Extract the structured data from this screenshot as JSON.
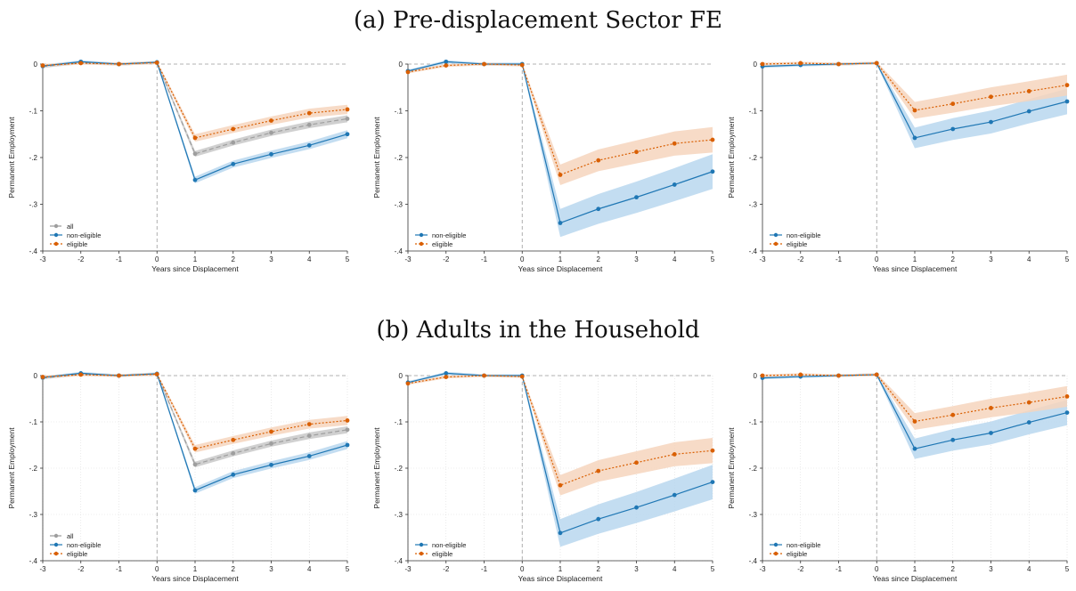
{
  "titles": {
    "a": "(a) Pre-displacement Sector FE",
    "b": "(b) Adults in the Household"
  },
  "colors": {
    "all": "#9e9e9e",
    "non_eligible": "#1f77b4",
    "eligible": "#d95f02",
    "all_band": "#c8c8c8",
    "non_eligible_band": "#b9d7ee",
    "eligible_band": "#f6d5bd"
  },
  "chart_data": [
    {
      "type": "line",
      "section": "a",
      "xlabel": "Years since Displacement",
      "ylabel": "Permanent Employment",
      "x": [
        -3,
        -2,
        -1,
        0,
        1,
        2,
        3,
        4,
        5
      ],
      "xlim": [
        -3,
        5
      ],
      "ylim": [
        -0.4,
        0
      ],
      "yticks": [
        0,
        -0.1,
        -0.2,
        -0.3,
        -0.4
      ],
      "yticklabels": [
        "0",
        "-.1",
        "-.2",
        "-.3",
        "-.4"
      ],
      "grid": false,
      "legend_position": "bottom-left",
      "series": [
        {
          "name": "all",
          "key": "all",
          "dash": "5,3",
          "values": [
            -0.005,
            0.003,
            0,
            0.003,
            -0.192,
            -0.168,
            -0.147,
            -0.13,
            -0.117
          ],
          "ci": 0.006
        },
        {
          "name": "non-eligible",
          "key": "non_eligible",
          "dash": "",
          "values": [
            -0.004,
            0.005,
            0,
            0.004,
            -0.248,
            -0.214,
            -0.193,
            -0.174,
            -0.15
          ],
          "ci": 0.007
        },
        {
          "name": "eligible",
          "key": "eligible",
          "dash": "2,2",
          "values": [
            -0.003,
            0.002,
            0,
            0.003,
            -0.158,
            -0.139,
            -0.121,
            -0.105,
            -0.097
          ],
          "ci": 0.008
        }
      ]
    },
    {
      "type": "line",
      "section": "a",
      "xlabel": "Yeas since Displacement",
      "ylabel": "Permanent Employment",
      "x": [
        -3,
        -2,
        -1,
        0,
        1,
        2,
        3,
        4,
        5
      ],
      "xlim": [
        -3,
        5
      ],
      "ylim": [
        -0.4,
        0
      ],
      "yticks": [
        0,
        -0.1,
        -0.2,
        -0.3,
        -0.4
      ],
      "yticklabels": [
        "0",
        "-.1",
        "-.2",
        "-.3",
        "-.4"
      ],
      "grid": false,
      "legend_position": "bottom-left",
      "series": [
        {
          "name": "non-eligible",
          "key": "non_eligible",
          "dash": "",
          "values": [
            -0.015,
            0.005,
            0,
            0,
            -0.34,
            -0.31,
            -0.285,
            -0.258,
            -0.23
          ],
          "ci": 0.03
        },
        {
          "name": "eligible",
          "key": "eligible",
          "dash": "2,2",
          "values": [
            -0.017,
            -0.003,
            0,
            -0.002,
            -0.237,
            -0.206,
            -0.188,
            -0.17,
            -0.162
          ],
          "ci": 0.022
        }
      ]
    },
    {
      "type": "line",
      "section": "a",
      "xlabel": "Yeas since Displacement",
      "ylabel": "Permanent Employment",
      "x": [
        -3,
        -2,
        -1,
        0,
        1,
        2,
        3,
        4,
        5
      ],
      "xlim": [
        -3,
        5
      ],
      "ylim": [
        -0.4,
        0
      ],
      "yticks": [
        0,
        -0.1,
        -0.2,
        -0.3,
        -0.4
      ],
      "yticklabels": [
        "0",
        "-.1",
        "-.2",
        "-.3",
        "-.4"
      ],
      "grid": false,
      "legend_position": "bottom-left",
      "series": [
        {
          "name": "non-eligible",
          "key": "non_eligible",
          "dash": "",
          "values": [
            -0.005,
            -0.002,
            0,
            0.002,
            -0.158,
            -0.139,
            -0.124,
            -0.101,
            -0.08
          ],
          "ci": 0.022
        },
        {
          "name": "eligible",
          "key": "eligible",
          "dash": "2,2",
          "values": [
            0,
            0.002,
            0,
            0.002,
            -0.099,
            -0.085,
            -0.07,
            -0.058,
            -0.045
          ],
          "ci": 0.018
        }
      ]
    },
    {
      "type": "line",
      "section": "b",
      "xlabel": "Years since Displacement",
      "ylabel": "Permanent Employment",
      "x": [
        -3,
        -2,
        -1,
        0,
        1,
        2,
        3,
        4,
        5
      ],
      "xlim": [
        -3,
        5
      ],
      "ylim": [
        -0.4,
        0
      ],
      "yticks": [
        0,
        -0.1,
        -0.2,
        -0.3,
        -0.4
      ],
      "yticklabels": [
        "0",
        "-.1",
        "-.2",
        "-.3",
        "-.4"
      ],
      "grid": true,
      "legend_position": "bottom-left",
      "series": [
        {
          "name": "all",
          "key": "all",
          "dash": "5,3",
          "values": [
            -0.005,
            0.003,
            0,
            0.003,
            -0.192,
            -0.168,
            -0.147,
            -0.13,
            -0.117
          ],
          "ci": 0.006
        },
        {
          "name": "non-eligible",
          "key": "non_eligible",
          "dash": "",
          "values": [
            -0.004,
            0.005,
            0,
            0.004,
            -0.248,
            -0.214,
            -0.193,
            -0.174,
            -0.15
          ],
          "ci": 0.007
        },
        {
          "name": "eligible",
          "key": "eligible",
          "dash": "2,2",
          "values": [
            -0.003,
            0.002,
            0,
            0.003,
            -0.158,
            -0.139,
            -0.121,
            -0.105,
            -0.097
          ],
          "ci": 0.008
        }
      ]
    },
    {
      "type": "line",
      "section": "b",
      "xlabel": "Yeas since Displacement",
      "ylabel": "Permanent Employment",
      "x": [
        -3,
        -2,
        -1,
        0,
        1,
        2,
        3,
        4,
        5
      ],
      "xlim": [
        -3,
        5
      ],
      "ylim": [
        -0.4,
        0
      ],
      "yticks": [
        0,
        -0.1,
        -0.2,
        -0.3,
        -0.4
      ],
      "yticklabels": [
        "0",
        "-.1",
        "-.2",
        "-.3",
        "-.4"
      ],
      "grid": true,
      "legend_position": "bottom-left",
      "series": [
        {
          "name": "non-eligible",
          "key": "non_eligible",
          "dash": "",
          "values": [
            -0.015,
            0.005,
            0,
            0,
            -0.34,
            -0.31,
            -0.285,
            -0.258,
            -0.23
          ],
          "ci": 0.03
        },
        {
          "name": "eligible",
          "key": "eligible",
          "dash": "2,2",
          "values": [
            -0.017,
            -0.003,
            0,
            -0.002,
            -0.237,
            -0.206,
            -0.188,
            -0.17,
            -0.162
          ],
          "ci": 0.022
        }
      ]
    },
    {
      "type": "line",
      "section": "b",
      "xlabel": "Yeas since Displacement",
      "ylabel": "Permanent Employment",
      "x": [
        -3,
        -2,
        -1,
        0,
        1,
        2,
        3,
        4,
        5
      ],
      "xlim": [
        -3,
        5
      ],
      "ylim": [
        -0.4,
        0
      ],
      "yticks": [
        0,
        -0.1,
        -0.2,
        -0.3,
        -0.4
      ],
      "yticklabels": [
        "0",
        "-.1",
        "-.2",
        "-.3",
        "-.4"
      ],
      "grid": true,
      "legend_position": "bottom-left",
      "series": [
        {
          "name": "non-eligible",
          "key": "non_eligible",
          "dash": "",
          "values": [
            -0.005,
            -0.002,
            0,
            0.002,
            -0.158,
            -0.139,
            -0.124,
            -0.101,
            -0.08
          ],
          "ci": 0.022
        },
        {
          "name": "eligible",
          "key": "eligible",
          "dash": "2,2",
          "values": [
            0,
            0.002,
            0,
            0.002,
            -0.099,
            -0.085,
            -0.07,
            -0.058,
            -0.045
          ],
          "ci": 0.018
        }
      ]
    }
  ]
}
